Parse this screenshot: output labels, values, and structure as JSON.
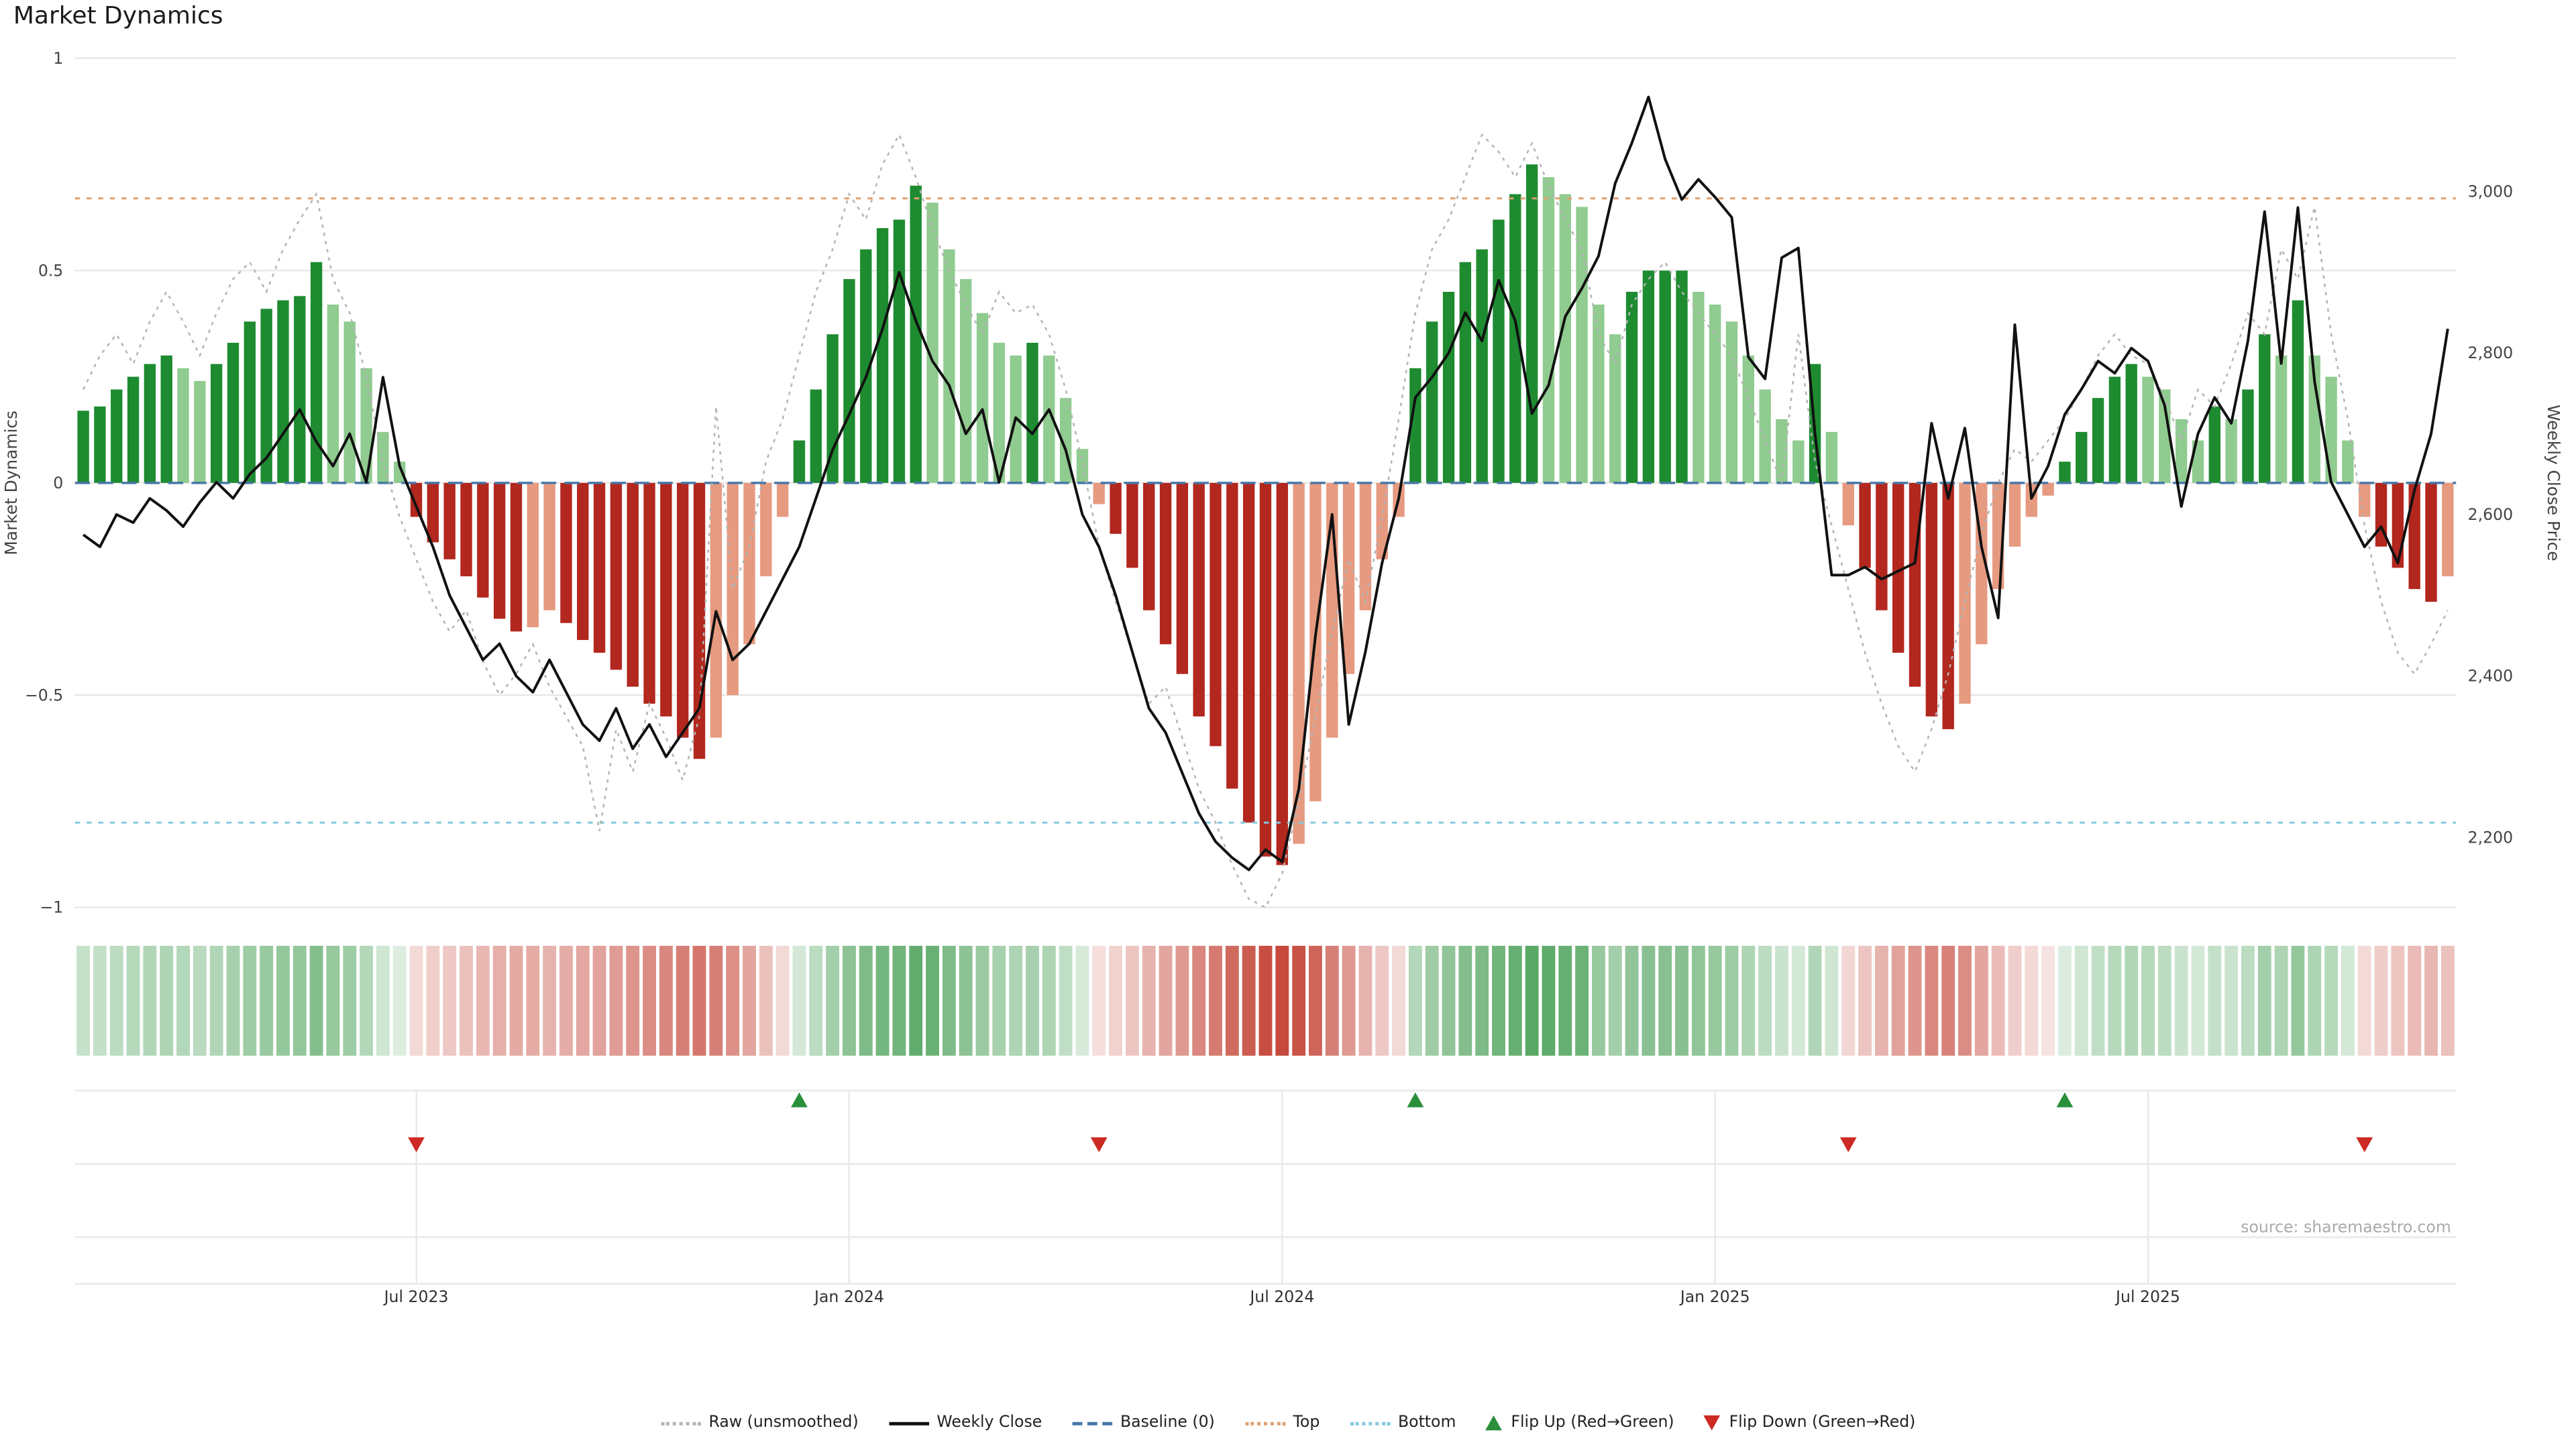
{
  "title": "Market Dynamics",
  "source": "source: sharemaestro.com",
  "axes": {
    "left_title": "Market Dynamics",
    "right_title": "Weekly Close Price",
    "left_ticks": [
      1,
      0.5,
      0,
      -0.5,
      -1
    ],
    "left_tick_labels": [
      "1",
      "0.5",
      "0",
      "−0.5",
      "−1"
    ],
    "right_ticks": [
      3000,
      2800,
      2600,
      2400,
      2200
    ],
    "right_tick_labels": [
      "3,000",
      "2,800",
      "2,600",
      "2,400",
      "2,200"
    ],
    "x_tick_labels": [
      "Jul 2023",
      "Jan 2024",
      "Jul 2024",
      "Jan 2025",
      "Jul 2025"
    ],
    "x_tick_weeks": [
      20,
      46,
      72,
      98,
      124
    ]
  },
  "legend": {
    "items": [
      {
        "id": "raw",
        "label": "Raw (unsmoothed)",
        "swatch": "dotted-line",
        "color": "#b4b4b4"
      },
      {
        "id": "weekly-close",
        "label": "Weekly Close",
        "swatch": "solid-line",
        "color": "#111111"
      },
      {
        "id": "baseline",
        "label": "Baseline (0)",
        "swatch": "dashed-line",
        "color": "#4878a8"
      },
      {
        "id": "top",
        "label": "Top",
        "swatch": "dotted-line",
        "color": "#e0a070"
      },
      {
        "id": "bottom",
        "label": "Bottom",
        "swatch": "dotted-line",
        "color": "#85c9dc"
      },
      {
        "id": "flip-up",
        "label": "Flip Up (Red→Green)",
        "swatch": "triangle-up",
        "color": "#2a8f3a"
      },
      {
        "id": "flip-down",
        "label": "Flip Down (Green→Red)",
        "swatch": "triangle-down",
        "color": "#cc2a22"
      }
    ]
  },
  "colors": {
    "bar_green_strong": "#1e8b31",
    "bar_green_light": "#90cb90",
    "bar_red_strong": "#b2271e",
    "bar_red_light": "#e69a80",
    "heat_green": "#2a8f3a",
    "heat_red": "#c0392b",
    "price_line": "#111111",
    "raw_line": "#b4b4b4",
    "baseline_line": "#4878a8",
    "top_line": "#e0a070",
    "bottom_line": "#85c9dc",
    "grid": "#e9e9e9",
    "axis_text": "#444444",
    "tick_text": "#333333",
    "source_text": "#aaaaaa",
    "flip_up": "#2a8f3a",
    "flip_down": "#cc2a22"
  },
  "chart_data": {
    "type": "bar+line",
    "x_unit": "weekly bars (index)",
    "left_axis_range": [
      -1,
      1
    ],
    "right_axis_range": [
      2200,
      3000
    ],
    "thresholds": {
      "baseline": 0,
      "top": 0.67,
      "bottom": -0.8
    },
    "flip_up_weeks": [
      43,
      80,
      119
    ],
    "flip_down_weeks": [
      20,
      61,
      106,
      137
    ],
    "oscillator": [
      0.17,
      0.18,
      0.22,
      0.25,
      0.28,
      0.3,
      0.27,
      0.24,
      0.28,
      0.33,
      0.38,
      0.41,
      0.43,
      0.44,
      0.52,
      0.42,
      0.38,
      0.27,
      0.12,
      0.05,
      -0.08,
      -0.14,
      -0.18,
      -0.22,
      -0.27,
      -0.32,
      -0.35,
      -0.34,
      -0.3,
      -0.33,
      -0.37,
      -0.4,
      -0.44,
      -0.48,
      -0.52,
      -0.55,
      -0.6,
      -0.65,
      -0.6,
      -0.5,
      -0.38,
      -0.22,
      -0.08,
      0.1,
      0.22,
      0.35,
      0.48,
      0.55,
      0.6,
      0.62,
      0.7,
      0.66,
      0.55,
      0.48,
      0.4,
      0.33,
      0.3,
      0.33,
      0.3,
      0.2,
      0.08,
      -0.05,
      -0.12,
      -0.2,
      -0.3,
      -0.38,
      -0.45,
      -0.55,
      -0.62,
      -0.72,
      -0.8,
      -0.88,
      -0.9,
      -0.85,
      -0.75,
      -0.6,
      -0.45,
      -0.3,
      -0.18,
      -0.08,
      0.27,
      0.38,
      0.45,
      0.52,
      0.55,
      0.62,
      0.68,
      0.75,
      0.72,
      0.68,
      0.65,
      0.42,
      0.35,
      0.45,
      0.5,
      0.5,
      0.5,
      0.45,
      0.42,
      0.38,
      0.3,
      0.22,
      0.15,
      0.1,
      0.28,
      0.12,
      -0.1,
      -0.2,
      -0.3,
      -0.4,
      -0.48,
      -0.55,
      -0.58,
      -0.52,
      -0.38,
      -0.25,
      -0.15,
      -0.08,
      -0.03,
      0.05,
      0.12,
      0.2,
      0.25,
      0.28,
      0.25,
      0.22,
      0.15,
      0.1,
      0.18,
      0.15,
      0.22,
      0.35,
      0.3,
      0.43,
      0.3,
      0.25,
      0.1,
      -0.08,
      -0.15,
      -0.2,
      -0.25,
      -0.28,
      -0.22
    ],
    "raw": [
      0.22,
      0.3,
      0.35,
      0.28,
      0.38,
      0.45,
      0.38,
      0.3,
      0.4,
      0.48,
      0.52,
      0.45,
      0.55,
      0.62,
      0.68,
      0.48,
      0.4,
      0.25,
      0.05,
      -0.08,
      -0.18,
      -0.28,
      -0.35,
      -0.3,
      -0.42,
      -0.5,
      -0.45,
      -0.38,
      -0.48,
      -0.55,
      -0.62,
      -0.82,
      -0.58,
      -0.68,
      -0.52,
      -0.6,
      -0.7,
      -0.55,
      0.18,
      -0.25,
      -0.15,
      0.05,
      0.15,
      0.3,
      0.45,
      0.55,
      0.68,
      0.62,
      0.75,
      0.82,
      0.72,
      0.6,
      0.5,
      0.42,
      0.35,
      0.45,
      0.4,
      0.42,
      0.35,
      0.22,
      0.05,
      -0.15,
      -0.28,
      -0.4,
      -0.52,
      -0.48,
      -0.6,
      -0.72,
      -0.8,
      -0.9,
      -0.98,
      -1.0,
      -0.92,
      -0.75,
      -0.55,
      -0.35,
      -0.18,
      -0.28,
      -0.08,
      0.15,
      0.4,
      0.55,
      0.62,
      0.72,
      0.82,
      0.78,
      0.72,
      0.8,
      0.7,
      0.62,
      0.55,
      0.35,
      0.28,
      0.42,
      0.48,
      0.52,
      0.45,
      0.4,
      0.35,
      0.3,
      0.2,
      0.1,
      0.0,
      0.35,
      0.05,
      -0.1,
      -0.25,
      -0.4,
      -0.52,
      -0.62,
      -0.68,
      -0.58,
      -0.45,
      -0.28,
      -0.12,
      0.0,
      0.08,
      0.05,
      0.1,
      0.15,
      0.22,
      0.3,
      0.35,
      0.3,
      0.28,
      0.2,
      0.1,
      0.22,
      0.18,
      0.28,
      0.4,
      0.35,
      0.55,
      0.48,
      0.65,
      0.35,
      0.15,
      -0.1,
      -0.28,
      -0.4,
      -0.45,
      -0.38,
      -0.3
    ],
    "price": [
      2575,
      2560,
      2600,
      2590,
      2620,
      2605,
      2585,
      2615,
      2640,
      2620,
      2650,
      2670,
      2700,
      2730,
      2690,
      2660,
      2700,
      2640,
      2770,
      2660,
      2610,
      2560,
      2500,
      2460,
      2420,
      2440,
      2400,
      2380,
      2420,
      2380,
      2340,
      2320,
      2360,
      2310,
      2340,
      2300,
      2330,
      2360,
      2480,
      2420,
      2440,
      2480,
      2520,
      2560,
      2620,
      2680,
      2724,
      2770,
      2830,
      2900,
      2840,
      2790,
      2760,
      2700,
      2730,
      2640,
      2720,
      2700,
      2730,
      2680,
      2600,
      2560,
      2500,
      2430,
      2360,
      2330,
      2280,
      2230,
      2195,
      2175,
      2160,
      2185,
      2170,
      2260,
      2450,
      2600,
      2340,
      2430,
      2540,
      2620,
      2745,
      2770,
      2800,
      2850,
      2815,
      2890,
      2840,
      2725,
      2760,
      2845,
      2880,
      2920,
      3010,
      3060,
      3117,
      3040,
      2990,
      3015,
      2993,
      2968,
      2795,
      2768,
      2918,
      2930,
      2700,
      2525,
      2525,
      2535,
      2520,
      2530,
      2540,
      2713,
      2620,
      2707,
      2560,
      2472,
      2835,
      2620,
      2660,
      2724,
      2755,
      2790,
      2775,
      2806,
      2790,
      2735,
      2610,
      2700,
      2745,
      2713,
      2815,
      2975,
      2787,
      2980,
      2765,
      2640,
      2600,
      2560,
      2585,
      2540,
      2630,
      2700,
      2830
    ]
  }
}
